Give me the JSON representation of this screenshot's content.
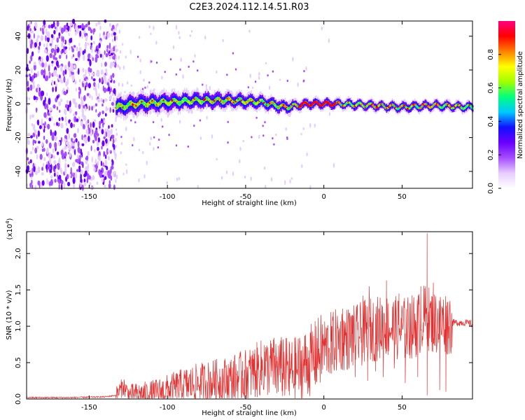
{
  "figure": {
    "title": "C2E3.2024.112.14.51.R03"
  },
  "chart_data": [
    {
      "type": "heatmap",
      "xlabel": "Height of straight line (km)",
      "ylabel": "Frequency (Hz)",
      "xlim": [
        -190,
        95
      ],
      "ylim": [
        -50,
        49
      ],
      "xticks": [
        "-150",
        "-100",
        "-50",
        "0",
        "50"
      ],
      "yticks": [
        "-40",
        "-20",
        "0",
        "20",
        "40"
      ],
      "colorbar": {
        "label": "Normalized spectral amplitude",
        "ticks": [
          "0.0",
          "0.2",
          "0.4",
          "0.6",
          "0.8"
        ],
        "range": [
          0,
          1
        ],
        "colormap": [
          "#ffffff",
          "#e6ccff",
          "#a64dff",
          "#6a00ff",
          "#1010ff",
          "#00c8ff",
          "#00ff80",
          "#a0ff00",
          "#ffff00",
          "#ff8000",
          "#ff0000",
          "#ff0080"
        ]
      },
      "features": [
        {
          "kind": "noise",
          "x_range": [
            -190,
            -133
          ],
          "freq_range": [
            -50,
            49
          ]
        },
        {
          "kind": "signal",
          "x": -132,
          "freq": -2
        },
        {
          "kind": "signal",
          "x": -120,
          "freq": 0
        },
        {
          "kind": "signal",
          "x": -100,
          "freq": 1
        },
        {
          "kind": "signal",
          "x": -80,
          "freq": 2
        },
        {
          "kind": "signal",
          "x": -60,
          "freq": 2
        },
        {
          "kind": "signal",
          "x": -40,
          "freq": 1
        },
        {
          "kind": "signal",
          "x": -25,
          "freq": -2
        },
        {
          "kind": "signal",
          "x": -10,
          "freq": 0
        },
        {
          "kind": "signal",
          "x": 0,
          "freq": 0
        },
        {
          "kind": "signal",
          "x": 10,
          "freq": 0
        },
        {
          "kind": "signal",
          "x": 30,
          "freq": -1
        },
        {
          "kind": "signal",
          "x": 50,
          "freq": -2
        },
        {
          "kind": "signal",
          "x": 70,
          "freq": -1
        },
        {
          "kind": "signal",
          "x": 95,
          "freq": -2
        }
      ]
    },
    {
      "type": "line",
      "xlabel": "Height of straight line (km)",
      "ylabel": "SNR (10 * v/v)",
      "scale_label": "(x10",
      "scale_exp": "4",
      "scale_close": ")",
      "xlim": [
        -190,
        95
      ],
      "ylim": [
        0,
        2.3
      ],
      "xticks": [
        "-150",
        "-100",
        "-50",
        "0",
        "50"
      ],
      "yticks": [
        "0.0",
        "0.5",
        "1.0",
        "1.5",
        "2.0"
      ],
      "color": "#e03030",
      "series": [
        {
          "x": [
            -190,
            -160,
            -140,
            -133,
            -130,
            -128,
            -125,
            -110,
            -100,
            -90,
            -80,
            -70,
            -60,
            -50,
            -40,
            -30,
            -20,
            -10,
            0,
            10,
            20,
            30,
            40,
            50,
            60,
            65,
            70,
            80,
            90,
            95
          ],
          "y": [
            0.02,
            0.02,
            0.03,
            0.05,
            0.13,
            0.18,
            0.06,
            0.07,
            0.12,
            0.18,
            0.22,
            0.24,
            0.26,
            0.32,
            0.42,
            0.45,
            0.38,
            0.5,
            0.7,
            0.82,
            0.85,
            0.95,
            1.0,
            0.95,
            1.02,
            1.15,
            1.05,
            1.05,
            1.05,
            1.03
          ]
        }
      ],
      "peaks": [
        {
          "x": -128,
          "y": 0.19
        },
        {
          "x": -115,
          "y": 0.1
        },
        {
          "x": -100,
          "y": 0.17
        },
        {
          "x": -93,
          "y": 0.27
        },
        {
          "x": -78,
          "y": 0.32
        },
        {
          "x": -70,
          "y": 0.38
        },
        {
          "x": -62,
          "y": 0.34
        },
        {
          "x": -52,
          "y": 0.52
        },
        {
          "x": -45,
          "y": 0.55
        },
        {
          "x": -38,
          "y": 0.74
        },
        {
          "x": -33,
          "y": 0.71
        },
        {
          "x": -26,
          "y": 0.82
        },
        {
          "x": -18,
          "y": 0.7
        },
        {
          "x": -12,
          "y": 0.87
        },
        {
          "x": -5,
          "y": 1.0
        },
        {
          "x": 5,
          "y": 1.0
        },
        {
          "x": 12,
          "y": 1.24
        },
        {
          "x": 18,
          "y": 1.15
        },
        {
          "x": 25,
          "y": 1.42
        },
        {
          "x": 29,
          "y": 1.55
        },
        {
          "x": 36,
          "y": 1.38
        },
        {
          "x": 40,
          "y": 1.63
        },
        {
          "x": 48,
          "y": 1.45
        },
        {
          "x": 55,
          "y": 1.32
        },
        {
          "x": 62,
          "y": 1.55
        },
        {
          "x": 66,
          "y": 2.28
        },
        {
          "x": 70,
          "y": 1.6
        },
        {
          "x": 76,
          "y": 1.25
        }
      ],
      "troughs": [
        {
          "x": -30,
          "y": 0.08
        },
        {
          "x": -22,
          "y": 0.05
        },
        {
          "x": -15,
          "y": 0.18
        },
        {
          "x": 5,
          "y": 0.35
        },
        {
          "x": 12,
          "y": 0.4
        },
        {
          "x": 20,
          "y": 0.3
        },
        {
          "x": 28,
          "y": 0.25
        },
        {
          "x": 33,
          "y": 0.38
        },
        {
          "x": 38,
          "y": 0.3
        },
        {
          "x": 45,
          "y": 0.42
        },
        {
          "x": 52,
          "y": 0.22
        },
        {
          "x": 60,
          "y": 0.3
        },
        {
          "x": 66,
          "y": 0.05
        },
        {
          "x": 74,
          "y": 0.12
        },
        {
          "x": 78,
          "y": 0.1
        }
      ]
    }
  ]
}
